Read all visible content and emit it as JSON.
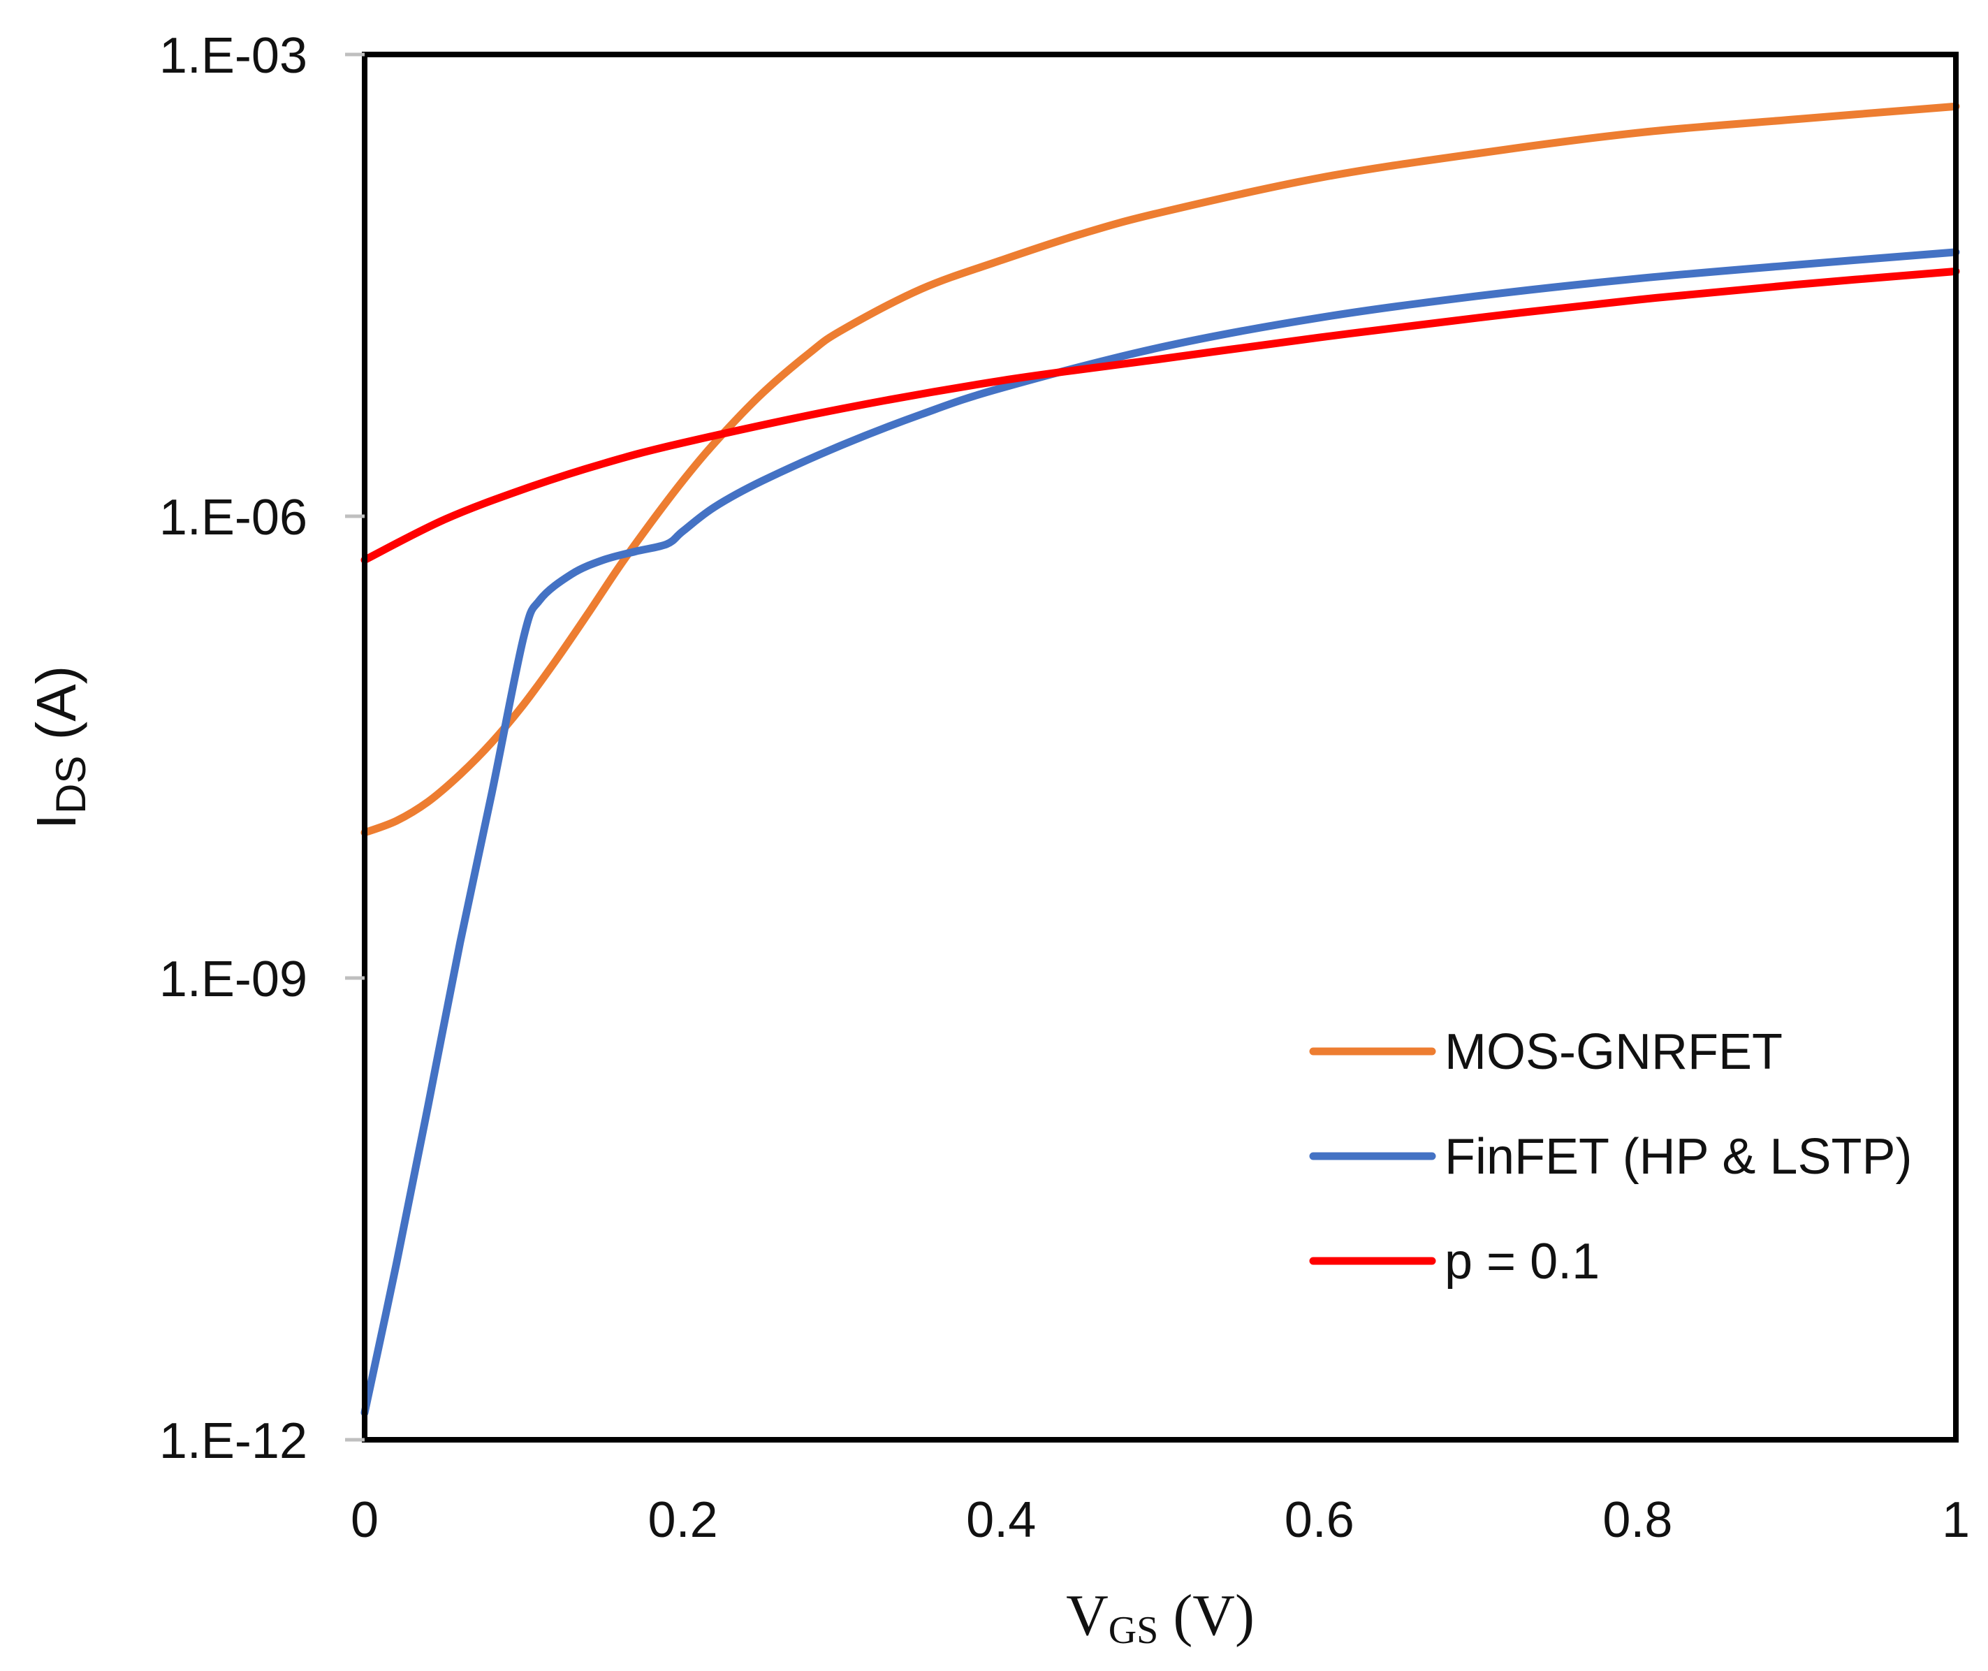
{
  "chart_data": {
    "type": "line",
    "title": "",
    "xlabel": {
      "main": "V",
      "sub": "GS",
      "unit": " (V)"
    },
    "ylabel": {
      "main": "I",
      "sub": "DS",
      "unit": " (A)"
    },
    "xlim": [
      0,
      1
    ],
    "ylim": [
      1e-12,
      0.001
    ],
    "yscale": "log",
    "grid": false,
    "legend_position": "lower-right",
    "x_ticks": [
      {
        "value": 0,
        "label": "0"
      },
      {
        "value": 0.2,
        "label": "0.2"
      },
      {
        "value": 0.4,
        "label": "0.4"
      },
      {
        "value": 0.6,
        "label": "0.6"
      },
      {
        "value": 0.8,
        "label": "0.8"
      },
      {
        "value": 1,
        "label": "1"
      }
    ],
    "y_ticks": [
      {
        "value": 1e-12,
        "label": "1.E-12"
      },
      {
        "value": 1e-09,
        "label": "1.E-09"
      },
      {
        "value": 1e-06,
        "label": "1.E-06"
      },
      {
        "value": 0.001,
        "label": "1.E-03"
      }
    ],
    "series": [
      {
        "name": "MOS-GNRFET",
        "color": "#ED7D31",
        "x": [
          0,
          0.02,
          0.04,
          0.06,
          0.08,
          0.1,
          0.12,
          0.14,
          0.16,
          0.18,
          0.2,
          0.22,
          0.25,
          0.28,
          0.3,
          0.35,
          0.4,
          0.45,
          0.5,
          0.6,
          0.7,
          0.8,
          0.9,
          1.0
        ],
        "y": [
          8.8e-09,
          1.05e-08,
          1.4e-08,
          2.1e-08,
          3.4e-08,
          6e-08,
          1.15e-07,
          2.3e-07,
          4.7e-07,
          9.1e-07,
          1.7e-06,
          3e-06,
          6.3e-06,
          1.16e-05,
          1.62e-05,
          3e-05,
          4.6e-05,
          6.8e-05,
          9.4e-05,
          0.000158,
          0.000228,
          0.00031,
          0.00038,
          0.00046
        ]
      },
      {
        "name": "FinFET (HP & LSTP)",
        "color": "#4472C4",
        "x": [
          0,
          0.02,
          0.04,
          0.06,
          0.08,
          0.1,
          0.11,
          0.13,
          0.15,
          0.17,
          0.19,
          0.2,
          0.22,
          0.25,
          0.3,
          0.35,
          0.4,
          0.5,
          0.6,
          0.7,
          0.8,
          0.9,
          1.0
        ],
        "y": [
          1.5e-12,
          1.4e-11,
          1.5e-10,
          1.7e-09,
          1.6e-08,
          1.65e-07,
          2.85e-07,
          4.2e-07,
          5.2e-07,
          5.9e-07,
          6.6e-07,
          8e-07,
          1.15e-06,
          1.7e-06,
          2.9e-06,
          4.6e-06,
          6.8e-06,
          1.25e-05,
          1.95e-05,
          2.7e-05,
          3.5e-05,
          4.3e-05,
          5.2e-05
        ]
      },
      {
        "name": "p = 0.1",
        "color": "#FF0000",
        "x": [
          0,
          0.05,
          0.1,
          0.15,
          0.2,
          0.3,
          0.4,
          0.5,
          0.6,
          0.7,
          0.8,
          0.9,
          1.0
        ],
        "y": [
          5.2e-07,
          9.5e-07,
          1.5e-06,
          2.2e-06,
          3e-06,
          5e-06,
          7.6e-06,
          1.05e-05,
          1.45e-05,
          1.95e-05,
          2.55e-05,
          3.2e-05,
          3.9e-05
        ]
      }
    ]
  }
}
